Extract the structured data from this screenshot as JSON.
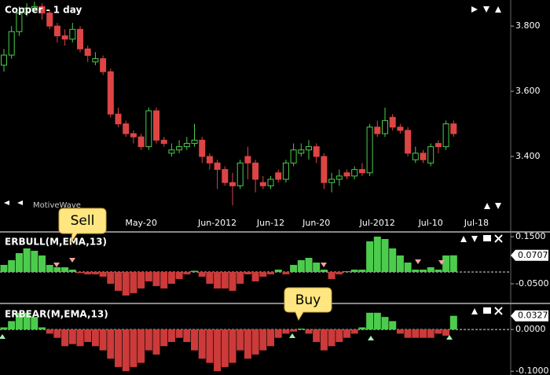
{
  "chart_data": [
    {
      "type": "candlestick",
      "title": "Copper - 1 day",
      "watermark": "MotiveWave",
      "categories": [
        null,
        null,
        null,
        null,
        null,
        null,
        null,
        null,
        null,
        null,
        null,
        null,
        null,
        null,
        null,
        null,
        null,
        null,
        "May-20",
        null,
        null,
        null,
        null,
        null,
        null,
        null,
        null,
        null,
        "Jun-2012",
        null,
        null,
        null,
        null,
        null,
        null,
        "Jun-12",
        null,
        null,
        null,
        null,
        null,
        "Jun-20",
        null,
        null,
        null,
        null,
        null,
        null,
        null,
        "Jul-2012",
        null,
        null,
        null,
        null,
        null,
        null,
        "Jul-10",
        null,
        null,
        null,
        null,
        null,
        "Jul-18"
      ],
      "open": [
        3.68,
        3.711,
        3.783,
        3.84,
        3.855,
        3.86,
        3.84,
        3.8,
        3.77,
        3.76,
        3.79,
        3.73,
        3.69,
        3.7,
        3.66,
        3.53,
        3.5,
        3.47,
        3.46,
        3.43,
        3.54,
        3.45,
        3.41,
        3.42,
        3.43,
        3.44,
        3.45,
        3.4,
        3.38,
        3.36,
        3.32,
        3.31,
        3.4,
        3.38,
        3.32,
        3.31,
        3.35,
        3.33,
        3.38,
        3.41,
        3.42,
        3.43,
        3.4,
        3.32,
        3.33,
        3.35,
        3.34,
        3.36,
        3.35,
        3.49,
        3.47,
        3.52,
        3.49,
        3.48,
        3.39,
        3.41,
        3.38,
        3.44,
        3.43,
        3.5,
        null,
        null,
        null
      ],
      "high": [
        3.73,
        3.8,
        3.86,
        3.87,
        3.875,
        3.87,
        3.85,
        3.81,
        3.79,
        3.81,
        3.8,
        3.74,
        3.72,
        3.71,
        3.67,
        3.55,
        3.51,
        3.48,
        3.47,
        3.55,
        3.55,
        3.46,
        3.44,
        3.45,
        3.46,
        3.5,
        3.46,
        3.41,
        3.39,
        3.37,
        3.35,
        3.39,
        3.43,
        3.39,
        3.34,
        3.34,
        3.36,
        3.39,
        3.44,
        3.44,
        3.45,
        3.44,
        3.41,
        3.35,
        3.36,
        3.36,
        3.37,
        3.38,
        3.5,
        3.51,
        3.55,
        3.53,
        3.5,
        3.49,
        3.43,
        3.42,
        3.44,
        3.45,
        3.51,
        3.51,
        null,
        null,
        null
      ],
      "low": [
        3.66,
        3.7,
        3.77,
        3.83,
        3.84,
        3.82,
        3.79,
        3.75,
        3.74,
        3.75,
        3.72,
        3.69,
        3.68,
        3.65,
        3.52,
        3.49,
        3.46,
        3.44,
        3.42,
        3.42,
        3.44,
        3.43,
        3.4,
        3.41,
        3.42,
        3.43,
        3.38,
        3.36,
        3.3,
        3.31,
        3.25,
        3.3,
        3.33,
        3.29,
        3.3,
        3.3,
        3.32,
        3.32,
        3.37,
        3.4,
        3.39,
        3.38,
        3.3,
        3.29,
        3.31,
        3.33,
        3.33,
        3.34,
        3.34,
        3.46,
        3.46,
        3.48,
        3.47,
        3.4,
        3.38,
        3.38,
        3.37,
        3.41,
        3.42,
        3.46,
        null,
        null,
        null
      ],
      "close": [
        3.711,
        3.783,
        3.84,
        3.855,
        3.86,
        3.84,
        3.8,
        3.77,
        3.76,
        3.79,
        3.73,
        3.71,
        3.7,
        3.66,
        3.53,
        3.5,
        3.47,
        3.46,
        3.43,
        3.54,
        3.45,
        3.44,
        3.42,
        3.43,
        3.44,
        3.45,
        3.4,
        3.38,
        3.36,
        3.32,
        3.31,
        3.38,
        3.38,
        3.33,
        3.31,
        3.33,
        3.33,
        3.38,
        3.42,
        3.42,
        3.43,
        3.4,
        3.32,
        3.33,
        3.34,
        3.34,
        3.36,
        3.35,
        3.49,
        3.47,
        3.51,
        3.49,
        3.48,
        3.41,
        3.41,
        3.39,
        3.43,
        3.43,
        3.5,
        3.47,
        null,
        null,
        null
      ],
      "up_color": "#4ccc4c",
      "down_color": "#dd4545",
      "ylim": [
        3.224,
        3.88
      ],
      "yticks": [
        {
          "value": 3.4,
          "label": "3.400"
        },
        {
          "value": 3.6,
          "label": "3.600"
        },
        {
          "value": 3.8,
          "label": "3.800"
        }
      ]
    },
    {
      "type": "bar",
      "title": "ERBULL(M,EMA,13)",
      "annotation": "Sell",
      "values": [
        0.03,
        0.05,
        0.08,
        0.1,
        0.09,
        0.07,
        0.03,
        0.02,
        0.02,
        0.01,
        -0.005,
        -0.01,
        -0.01,
        -0.02,
        -0.05,
        -0.08,
        -0.1,
        -0.09,
        -0.07,
        -0.04,
        -0.06,
        -0.07,
        -0.05,
        -0.03,
        -0.01,
        0.005,
        -0.02,
        -0.05,
        -0.07,
        -0.07,
        -0.08,
        -0.05,
        -0.01,
        -0.04,
        -0.02,
        -0.01,
        0.01,
        -0.01,
        0.03,
        0.05,
        0.06,
        0.04,
        0.01,
        -0.03,
        -0.01,
        0.003,
        0.01,
        0.01,
        0.13,
        0.15,
        0.14,
        0.1,
        0.07,
        0.04,
        0.01,
        0.01,
        0.02,
        0.01,
        0.07,
        0.0707
      ],
      "positive_color": "#4ccc4c",
      "negative_color": "#cc3a3a",
      "ylim": [
        -0.127,
        0.1667
      ],
      "yticks": [
        {
          "value": 0.15,
          "label": "0.1500"
        },
        {
          "value": -0.05,
          "label": "-0.0500"
        }
      ]
    },
    {
      "type": "bar",
      "title": "ERBEAR(M,EMA,13)",
      "annotation": "Buy",
      "values": [
        0.005,
        0.02,
        0.04,
        0.04,
        0.03,
        0.005,
        -0.01,
        -0.02,
        -0.04,
        -0.035,
        -0.04,
        -0.03,
        -0.04,
        -0.05,
        -0.07,
        -0.09,
        -0.1,
        -0.09,
        -0.08,
        -0.05,
        -0.06,
        -0.04,
        -0.03,
        -0.02,
        -0.03,
        -0.05,
        -0.07,
        -0.08,
        -0.1,
        -0.09,
        -0.08,
        -0.05,
        -0.07,
        -0.06,
        -0.05,
        -0.04,
        -0.02,
        -0.01,
        -0.005,
        0.002,
        -0.01,
        -0.03,
        -0.05,
        -0.04,
        -0.03,
        -0.02,
        -0.01,
        0.005,
        0.04,
        0.04,
        0.03,
        0.02,
        -0.01,
        -0.02,
        -0.02,
        -0.02,
        -0.02,
        -0.01,
        -0.015,
        0.0327
      ],
      "positive_color": "#4ccc4c",
      "negative_color": "#cc3a3a",
      "ylim": [
        -0.109,
        0.0585
      ],
      "yticks": [
        {
          "value": 0,
          "label": "0.0000"
        },
        {
          "value": -0.1,
          "label": "-0.1000"
        }
      ]
    }
  ]
}
